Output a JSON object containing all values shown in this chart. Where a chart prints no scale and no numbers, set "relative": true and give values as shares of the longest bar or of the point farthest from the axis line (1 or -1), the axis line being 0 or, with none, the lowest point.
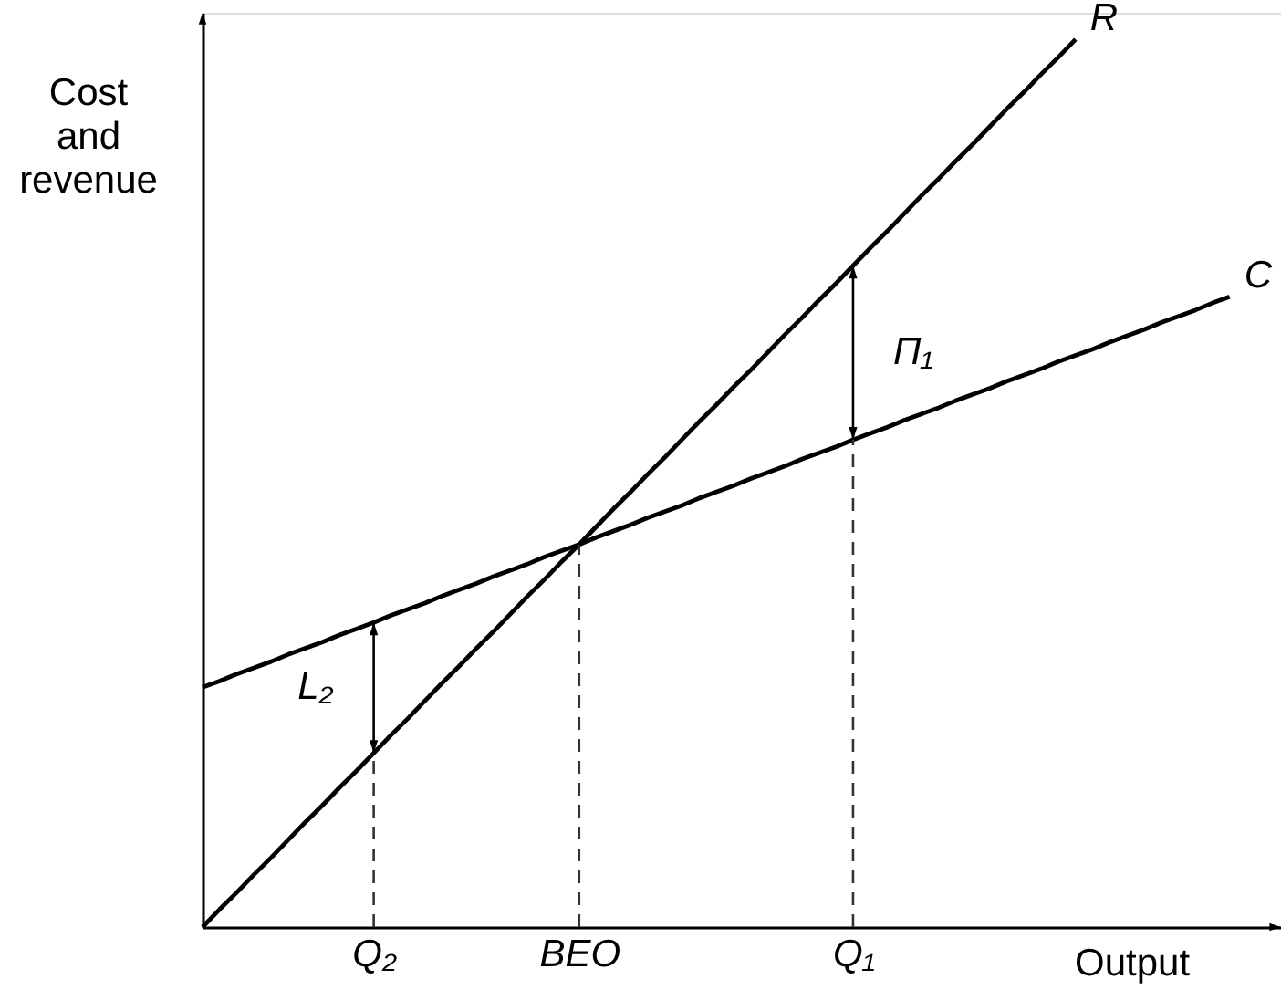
{
  "chart_data": {
    "type": "line",
    "relative": true,
    "xlabel": "Output",
    "ylabel": "Cost and revenue",
    "categories": [
      null,
      null,
      null,
      null,
      null,
      null,
      null,
      null,
      null,
      null,
      "Q₂",
      null,
      null,
      null,
      null,
      null,
      null,
      null,
      null,
      null,
      null,
      null,
      "BEO",
      null,
      null,
      null,
      null,
      null,
      null,
      null,
      null,
      null,
      null,
      null,
      null,
      null,
      null,
      null,
      "Q₁",
      null,
      null,
      null,
      null,
      null,
      null,
      null,
      null,
      null,
      null,
      null,
      null,
      null,
      null,
      null,
      null,
      null,
      null,
      null,
      null,
      null,
      null,
      null,
      null,
      null
    ],
    "tick_labels": "x",
    "grid": false,
    "legend": false,
    "series": [
      {
        "name": "R",
        "color": "#000000",
        "values": [
          0,
          0.02,
          0.039,
          0.059,
          0.078,
          0.098,
          0.118,
          0.137,
          0.157,
          0.176,
          0.196,
          0.216,
          0.235,
          0.255,
          0.275,
          0.294,
          0.314,
          0.333,
          0.353,
          0.373,
          0.392,
          0.412,
          0.431,
          0.451,
          0.471,
          0.49,
          0.51,
          0.529,
          0.549,
          0.569,
          0.588,
          0.608,
          0.627,
          0.647,
          0.667,
          0.686,
          0.706,
          0.725,
          0.745,
          0.765,
          0.784,
          0.804,
          0.824,
          0.843,
          0.863,
          0.882,
          0.902,
          0.922,
          0.941,
          0.961,
          0.98,
          1,
          null,
          null,
          null,
          null,
          null,
          null,
          null,
          null,
          null,
          null,
          null,
          null
        ]
      },
      {
        "name": "C",
        "color": "#000000",
        "values": [
          0.27,
          0.277,
          0.285,
          0.292,
          0.299,
          0.307,
          0.314,
          0.321,
          0.329,
          0.336,
          0.343,
          0.351,
          0.358,
          0.365,
          0.373,
          0.38,
          0.387,
          0.395,
          0.402,
          0.409,
          0.417,
          0.424,
          0.431,
          0.439,
          0.446,
          0.453,
          0.461,
          0.468,
          0.475,
          0.483,
          0.49,
          0.497,
          0.505,
          0.512,
          0.519,
          0.527,
          0.534,
          0.541,
          0.549,
          0.556,
          0.563,
          0.571,
          0.578,
          0.585,
          0.593,
          0.6,
          0.607,
          0.615,
          0.622,
          0.629,
          0.637,
          0.644,
          0.651,
          0.659,
          0.666,
          0.673,
          0.681,
          0.688,
          0.695,
          0.703,
          0.71,
          null,
          null,
          null
        ]
      }
    ],
    "ref_lines": [
      {
        "axis": "x",
        "value": "Q₂",
        "color": "#333333",
        "line_style": "dashed"
      },
      {
        "axis": "x",
        "value": "BEO",
        "color": "#333333",
        "line_style": "dashed"
      },
      {
        "axis": "x",
        "value": "Q₁",
        "color": "#333333",
        "line_style": "dashed"
      }
    ],
    "annotations": [
      {
        "text": "L₂",
        "x": "Q₂",
        "y": 0.343
      },
      {
        "text": "Π₁",
        "x": "Q₁",
        "y": 0.745
      }
    ]
  }
}
